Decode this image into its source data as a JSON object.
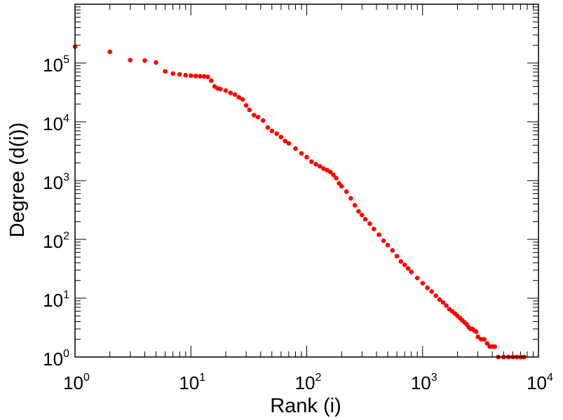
{
  "chart_data": {
    "type": "scatter",
    "xlabel": "Rank (i)",
    "ylabel": "Degree (d(i))",
    "xscale": "log",
    "yscale": "log",
    "xlim": [
      1,
      10000
    ],
    "ylim": [
      1,
      1000000
    ],
    "x_ticks": [
      {
        "base": "10",
        "exp": "0",
        "value": 1
      },
      {
        "base": "10",
        "exp": "1",
        "value": 10
      },
      {
        "base": "10",
        "exp": "2",
        "value": 100
      },
      {
        "base": "10",
        "exp": "3",
        "value": 1000
      },
      {
        "base": "10",
        "exp": "4",
        "value": 10000
      }
    ],
    "y_ticks": [
      {
        "base": "10",
        "exp": "0",
        "value": 1
      },
      {
        "base": "10",
        "exp": "1",
        "value": 10
      },
      {
        "base": "10",
        "exp": "2",
        "value": 100
      },
      {
        "base": "10",
        "exp": "3",
        "value": 1000
      },
      {
        "base": "10",
        "exp": "4",
        "value": 10000
      },
      {
        "base": "10",
        "exp": "5",
        "value": 100000
      }
    ],
    "grid": false,
    "marker_color": "#ff0000",
    "points": [
      [
        1,
        190000
      ],
      [
        2,
        155000
      ],
      [
        3,
        112000
      ],
      [
        4,
        110000
      ],
      [
        5,
        102000
      ],
      [
        6,
        72000
      ],
      [
        7,
        66000
      ],
      [
        8,
        64000
      ],
      [
        9,
        62000
      ],
      [
        10,
        61000
      ],
      [
        11,
        60000
      ],
      [
        12,
        59500
      ],
      [
        13,
        59000
      ],
      [
        14,
        58000
      ],
      [
        15,
        50000
      ],
      [
        16,
        40000
      ],
      [
        17,
        37000
      ],
      [
        18,
        36000
      ],
      [
        20,
        34000
      ],
      [
        22,
        31000
      ],
      [
        24,
        29000
      ],
      [
        26,
        26000
      ],
      [
        28,
        24000
      ],
      [
        30,
        19000
      ],
      [
        32,
        16000
      ],
      [
        35,
        13000
      ],
      [
        38,
        12000
      ],
      [
        42,
        10500
      ],
      [
        46,
        8000
      ],
      [
        50,
        7000
      ],
      [
        55,
        6300
      ],
      [
        60,
        5500
      ],
      [
        65,
        4700
      ],
      [
        70,
        4300
      ],
      [
        80,
        3500
      ],
      [
        90,
        2900
      ],
      [
        100,
        2500
      ],
      [
        110,
        2100
      ],
      [
        120,
        1900
      ],
      [
        130,
        1750
      ],
      [
        140,
        1600
      ],
      [
        150,
        1500
      ],
      [
        160,
        1400
      ],
      [
        170,
        1250
      ],
      [
        180,
        1100
      ],
      [
        190,
        900
      ],
      [
        200,
        800
      ],
      [
        220,
        650
      ],
      [
        240,
        500
      ],
      [
        260,
        380
      ],
      [
        280,
        300
      ],
      [
        300,
        260
      ],
      [
        320,
        220
      ],
      [
        350,
        185
      ],
      [
        380,
        150
      ],
      [
        420,
        120
      ],
      [
        460,
        95
      ],
      [
        500,
        80
      ],
      [
        550,
        65
      ],
      [
        600,
        52
      ],
      [
        650,
        42
      ],
      [
        700,
        37
      ],
      [
        750,
        32
      ],
      [
        800,
        28
      ],
      [
        900,
        22
      ],
      [
        1000,
        18
      ],
      [
        1100,
        15
      ],
      [
        1200,
        13
      ],
      [
        1300,
        11
      ],
      [
        1400,
        9.5
      ],
      [
        1500,
        8.5
      ],
      [
        1600,
        7.5
      ],
      [
        1700,
        6.5
      ],
      [
        1800,
        6
      ],
      [
        1900,
        5.5
      ],
      [
        2000,
        5
      ],
      [
        2100,
        4.6
      ],
      [
        2200,
        4.2
      ],
      [
        2300,
        3.9
      ],
      [
        2400,
        3.6
      ],
      [
        2500,
        3.2
      ],
      [
        2600,
        3
      ],
      [
        2700,
        3
      ],
      [
        2800,
        2.8
      ],
      [
        2900,
        2.7
      ],
      [
        3000,
        2.2
      ],
      [
        3200,
        2
      ],
      [
        3400,
        2
      ],
      [
        3600,
        1.7
      ],
      [
        3800,
        1.5
      ],
      [
        4000,
        1.5
      ],
      [
        4200,
        1.5
      ],
      [
        4500,
        1
      ],
      [
        5000,
        1
      ],
      [
        5500,
        1
      ],
      [
        6000,
        1
      ],
      [
        6500,
        1
      ],
      [
        7000,
        1
      ],
      [
        7500,
        1
      ]
    ]
  }
}
